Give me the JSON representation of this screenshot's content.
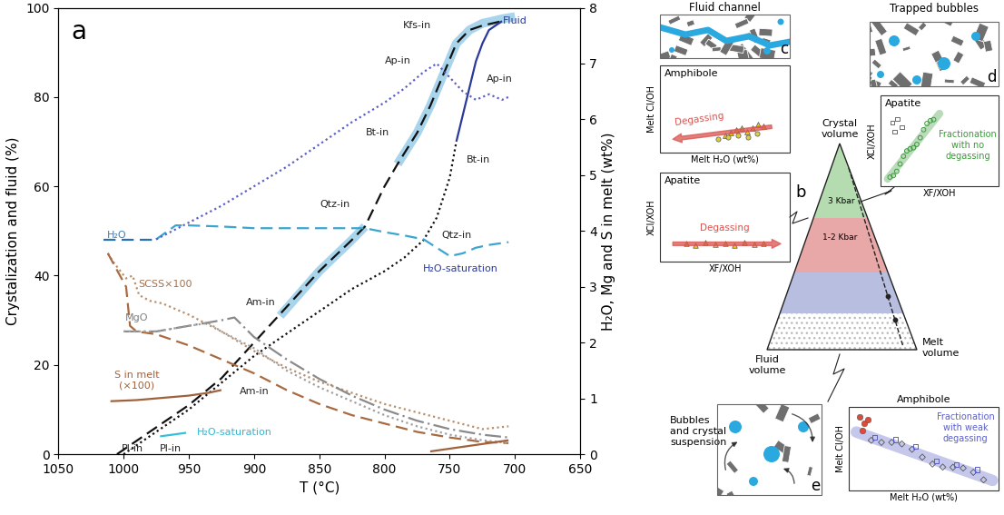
{
  "chart_data": {
    "type": "line",
    "panel_label": "a",
    "x_label": "T (°C)",
    "y_label": "Crystalization and fluid (%)",
    "y2_label": "H₂O, Mg and S in melt (wt%)",
    "xlim": [
      1050,
      650
    ],
    "xticks": [
      1050,
      1000,
      950,
      900,
      850,
      800,
      750,
      700,
      650
    ],
    "ylim": [
      0,
      100
    ],
    "yticks": [
      0,
      20,
      40,
      60,
      80,
      100
    ],
    "y2lim": [
      0,
      8
    ],
    "y2ticks": [
      0,
      1,
      2,
      3,
      4,
      5,
      6,
      7,
      8
    ],
    "series": [
      {
        "x": [
          880,
          850,
          825,
          815,
          805,
          790,
          775,
          765,
          755,
          745,
          735,
          725,
          710,
          700
        ],
        "values": [
          31,
          41,
          48,
          51,
          null,
          65,
          72,
          78,
          85,
          92,
          95,
          96.5,
          97.5,
          98
        ],
        "color": "#a8d4ec",
        "line_style": "band",
        "axis": "y"
      },
      {
        "x": [
          1005,
          1000,
          990,
          975,
          960,
          950,
          925,
          900,
          875,
          850,
          825,
          815,
          800,
          790,
          775,
          765,
          755,
          745,
          735,
          725,
          710
        ],
        "values": [
          0,
          1,
          3,
          6,
          9,
          11,
          17,
          25,
          33,
          41,
          48,
          51,
          60,
          65,
          72,
          78,
          85,
          92,
          95,
          96,
          97
        ],
        "color": "#111111",
        "line_style": "dashed",
        "axis": "y"
      },
      {
        "x": [
          1000,
          990,
          975,
          960,
          950,
          925,
          900,
          875,
          850,
          825,
          800,
          785,
          770,
          760,
          750,
          745
        ],
        "values": [
          0,
          2,
          5,
          8,
          10,
          16,
          22,
          27,
          32,
          37,
          41,
          44,
          48,
          53,
          62,
          70
        ],
        "color": "#111111",
        "line_style": "dotted",
        "axis": "y"
      },
      {
        "x": [
          745,
          740,
          735,
          730,
          725,
          720,
          715,
          710
        ],
        "values": [
          70,
          76,
          82,
          88,
          92,
          95,
          96,
          97
        ],
        "color": "#2b3a9a",
        "line_style": "solid",
        "axis": "y"
      },
      {
        "x": [
          972,
          952
        ],
        "values": [
          4.0,
          4.8
        ],
        "color": "#35c0d8",
        "line_style": "solid",
        "axis": "y"
      },
      {
        "x": [
          1015,
          1000,
          985,
          975
        ],
        "values": [
          3.85,
          3.85,
          3.85,
          3.85
        ],
        "color": "#2a6fb0",
        "line_style": "dashed",
        "axis": "y2"
      },
      {
        "x": [
          975,
          960,
          950,
          925,
          900,
          875,
          850,
          825,
          815,
          800,
          785,
          770,
          760,
          750,
          740,
          730,
          720,
          705
        ],
        "values": [
          3.85,
          4.1,
          4.1,
          4.08,
          4.05,
          4.05,
          4.05,
          4.05,
          4.05,
          3.98,
          3.92,
          3.85,
          3.7,
          3.55,
          3.6,
          3.7,
          3.75,
          3.8
        ],
        "color": "#3aa6d0",
        "line_style": "dashed",
        "axis": "y2"
      },
      {
        "x": [
          975,
          950,
          925,
          900,
          875,
          850,
          825,
          800,
          785,
          770,
          760,
          750,
          740,
          730,
          720,
          710,
          705
        ],
        "values": [
          3.85,
          4.15,
          4.45,
          4.8,
          5.15,
          5.55,
          5.95,
          6.3,
          6.55,
          6.85,
          7.0,
          6.75,
          6.5,
          6.35,
          6.45,
          6.35,
          6.4
        ],
        "color": "#5b5fc7",
        "line_style": "dotted",
        "axis": "y2"
      },
      {
        "x": [
          1012,
          1008,
          1003,
          998,
          993,
          988,
          980,
          970,
          950,
          925,
          900,
          875,
          850,
          825,
          800,
          775,
          750,
          725,
          705
        ],
        "values": [
          3.6,
          3.45,
          3.3,
          3.15,
          3.2,
          2.85,
          2.75,
          2.7,
          2.5,
          2.2,
          1.85,
          1.55,
          1.3,
          1.1,
          0.9,
          0.75,
          0.6,
          0.45,
          0.5
        ],
        "color": "#b8906c",
        "line_style": "dotted",
        "axis": "y2"
      },
      {
        "x": [
          1012,
          1005,
          998,
          995,
          990,
          975,
          950,
          925,
          900,
          875,
          850,
          825,
          800,
          775,
          750,
          725,
          705
        ],
        "values": [
          3.6,
          3.3,
          3.0,
          2.3,
          2.2,
          2.15,
          1.95,
          1.7,
          1.45,
          1.15,
          0.9,
          0.7,
          0.55,
          0.4,
          0.3,
          0.22,
          0.2
        ],
        "color": "#a86a40",
        "line_style": "dashed",
        "axis": "y2"
      },
      {
        "x": [
          1000,
          975,
          950,
          925,
          915,
          900,
          875,
          850,
          825,
          800,
          775,
          750,
          725,
          705
        ],
        "values": [
          2.2,
          2.2,
          2.3,
          2.4,
          2.45,
          2.1,
          1.7,
          1.35,
          1.05,
          0.8,
          0.6,
          0.45,
          0.35,
          0.3
        ],
        "color": "#8a8a8a",
        "line_style": "dashdot",
        "axis": "y2"
      },
      {
        "x": [
          1000,
          975,
          950,
          935,
          925,
          900,
          875,
          850,
          825,
          800,
          775,
          750,
          725,
          705
        ],
        "values": [
          2.2,
          2.2,
          2.3,
          2.35,
          2.2,
          1.9,
          1.5,
          1.2,
          0.95,
          0.7,
          0.5,
          0.35,
          0.25,
          0.2
        ],
        "color": "#a0a0a0",
        "line_style": "dotted",
        "axis": "y2"
      },
      {
        "x": [
          1010,
          990,
          975,
          950,
          935,
          925
        ],
        "values": [
          0.95,
          0.97,
          1.0,
          1.05,
          1.1,
          1.15
        ],
        "color": "#a0623c",
        "line_style": "solid",
        "axis": "y2"
      },
      {
        "x": [
          765,
          750,
          735,
          720,
          705
        ],
        "values": [
          0.05,
          0.1,
          0.15,
          0.2,
          0.25
        ],
        "color": "#a0623c",
        "line_style": "solid",
        "axis": "y2"
      }
    ],
    "annotations": [
      {
        "text": "Kfs-in",
        "x": 775,
        "y": 96,
        "color": "#222222"
      },
      {
        "text": "Fluid",
        "x": 700,
        "y": 97,
        "color": "#2b3a9a"
      },
      {
        "text": "Ap-in",
        "x": 790,
        "y": 88,
        "color": "#222222"
      },
      {
        "text": "Ap-in",
        "x": 712,
        "y": 84,
        "color": "#222222"
      },
      {
        "text": "Bt-in",
        "x": 805,
        "y": 72,
        "color": "#222222"
      },
      {
        "text": "Bt-in",
        "x": 728,
        "y": 66,
        "color": "#222222"
      },
      {
        "text": "Qtz-in",
        "x": 838,
        "y": 56,
        "color": "#222222"
      },
      {
        "text": "Qtz-in",
        "x": 745,
        "y": 49,
        "color": "#222222"
      },
      {
        "text": "H₂O-saturation",
        "x": 742,
        "y": 41.5,
        "color": "#2b3a9a"
      },
      {
        "text": "Am-in",
        "x": 895,
        "y": 34,
        "color": "#222222"
      },
      {
        "text": "Am-in",
        "x": 900,
        "y": 14,
        "color": "#222222"
      },
      {
        "text": "Pl-in",
        "x": 964,
        "y": 1.3,
        "color": "#222222"
      },
      {
        "text": "Pl-in",
        "x": 993,
        "y": 1.3,
        "color": "#222222"
      },
      {
        "text": "H₂O",
        "x": 1005,
        "y": 49,
        "color": "#3a7fc0"
      },
      {
        "text": "H₂O-saturation",
        "x": 915,
        "y": 5,
        "color": "#35b5d0"
      },
      {
        "text": "SCSS×100",
        "x": 968,
        "y": 38,
        "color": "#a07050"
      },
      {
        "text": "MgO",
        "x": 990,
        "y": 30.5,
        "color": "#808080"
      },
      {
        "text": "S in melt\n(×100)",
        "x": 990,
        "y": 16.5,
        "color": "#a0623c"
      }
    ]
  },
  "diagram": {
    "b": {
      "label": "b",
      "apexes": [
        "Crystal\nvolume",
        "Fluid\nvolume",
        "Melt\nvolume"
      ],
      "fields": [
        "3 Kbar",
        "1-2 Kbar"
      ]
    },
    "c": {
      "label": "c",
      "title": "Fluid channel",
      "insets": [
        {
          "title": "Amphibole",
          "y_label": "Melt Cl/OH",
          "x_label": "Melt H₂O (wt%)",
          "note": "Degassing",
          "color": "#d9534f"
        },
        {
          "title": "Apatite",
          "y_label": "XCl/XOH",
          "x_label": "XF/XOH",
          "note": "Degassing",
          "color": "#d9534f"
        }
      ]
    },
    "d": {
      "label": "d",
      "title": "Trapped bubbles",
      "insets": [
        {
          "title": "Apatite",
          "y_label": "XCl/XOH",
          "x_label": "XF/XOH",
          "note": "Fractionation\nwith no\ndegassing",
          "color": "#3a9a3a"
        }
      ]
    },
    "e": {
      "label": "e",
      "title": "Bubbles\nand crystal\nsuspension",
      "insets": [
        {
          "title": "Amphibole",
          "y_label": "Melt Cl/OH",
          "x_label": "Melt H₂O (wt%)",
          "note": "Fractionation\nwith weak\ndegassing",
          "color": "#5b5fc7"
        }
      ]
    }
  }
}
